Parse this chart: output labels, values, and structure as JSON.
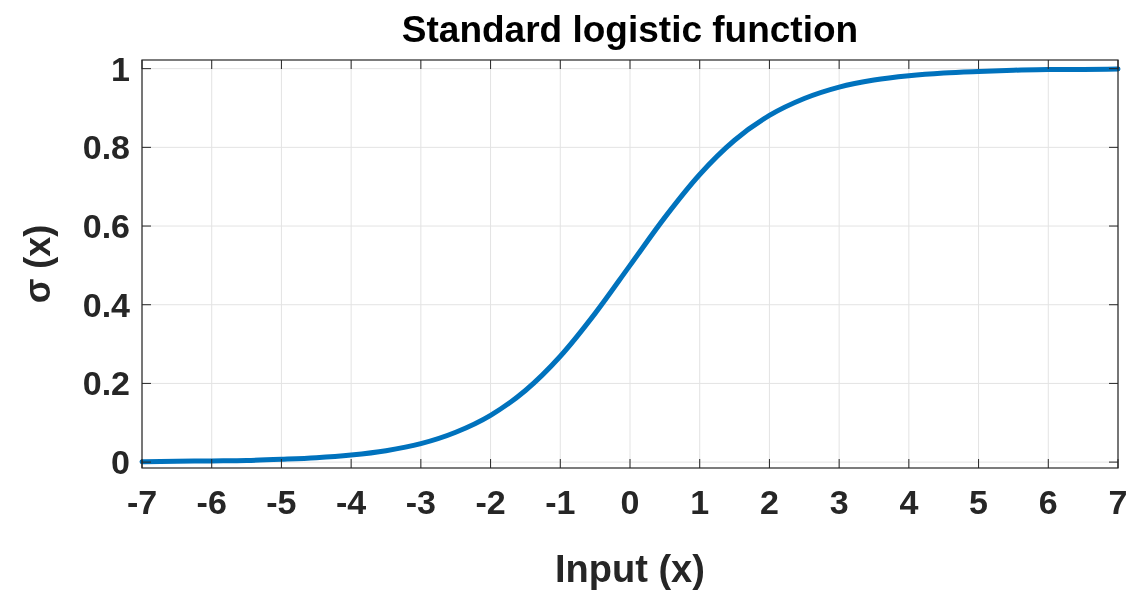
{
  "chart_data": {
    "type": "line",
    "title": "Standard logistic function",
    "xlabel": "Input (x)",
    "ylabel": "σ (x)",
    "x": [
      -7,
      -6.5,
      -6,
      -5.5,
      -5,
      -4.5,
      -4,
      -3.5,
      -3,
      -2.5,
      -2,
      -1.5,
      -1,
      -0.5,
      0,
      0.5,
      1,
      1.5,
      2,
      2.5,
      3,
      3.5,
      4,
      4.5,
      5,
      5.5,
      6,
      6.5,
      7
    ],
    "series": [
      {
        "color": "#0072bd",
        "values": [
          0.001,
          0.002,
          0.003,
          0.004,
          0.007,
          0.011,
          0.018,
          0.029,
          0.047,
          0.076,
          0.119,
          0.182,
          0.269,
          0.378,
          0.5,
          0.622,
          0.731,
          0.818,
          0.881,
          0.924,
          0.953,
          0.971,
          0.982,
          0.989,
          0.993,
          0.996,
          0.998,
          0.998,
          0.999
        ]
      }
    ],
    "xlim": [
      -7,
      7
    ],
    "ylim": [
      -0.015,
      1.022
    ],
    "xticks": [
      -7,
      -6,
      -5,
      -4,
      -3,
      -2,
      -1,
      0,
      1,
      2,
      3,
      4,
      5,
      6,
      7
    ],
    "yticks": [
      0,
      0.2,
      0.4,
      0.6,
      0.8,
      1
    ],
    "grid": true,
    "marker": "none",
    "line_style": "solid"
  }
}
